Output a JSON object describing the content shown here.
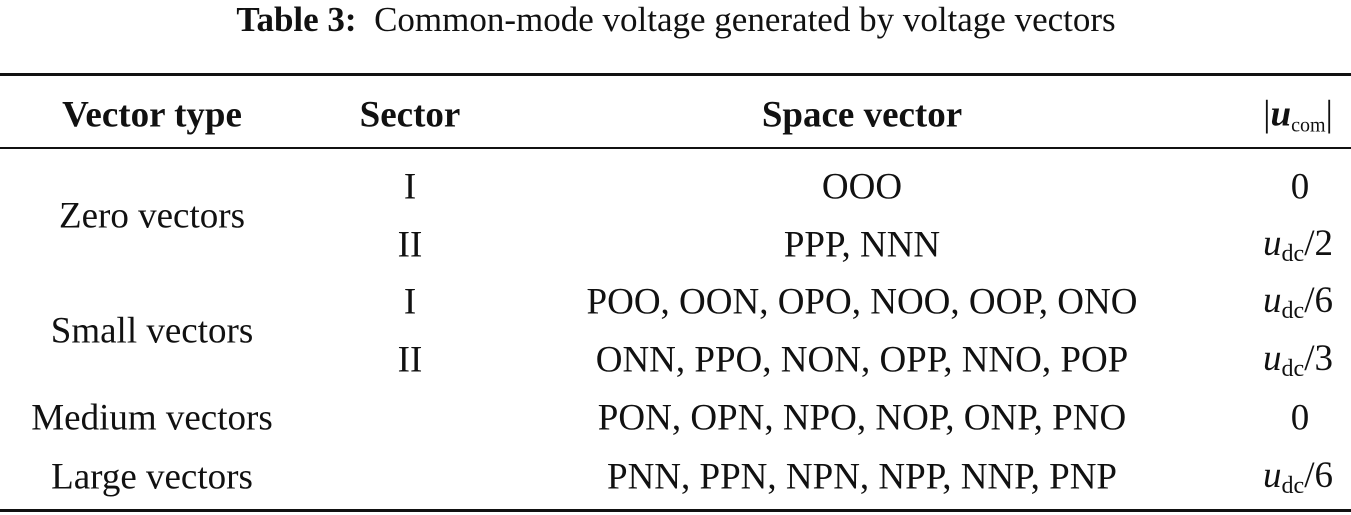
{
  "title": {
    "label": "Table 3:",
    "text": "Common-mode voltage generated by voltage vectors"
  },
  "table": {
    "header": {
      "type": "Vector type",
      "sector": "Sector",
      "space": "Space vector",
      "ucom": {
        "open": "|",
        "symbol": "u",
        "sub": "com",
        "close": "|"
      }
    },
    "groups": [
      {
        "type": "Zero vectors",
        "rows": [
          {
            "sector": "I",
            "vectors": "OOO",
            "ucom": 0
          },
          {
            "sector": "II",
            "vectors": "PPP, NNN",
            "ucom": {
              "symbol": "u",
              "sub": "dc",
              "rest": "/2"
            }
          }
        ]
      },
      {
        "type": "Small vectors",
        "rows": [
          {
            "sector": "I",
            "vectors": "POO, OON, OPO, NOO, OOP, ONO",
            "ucom": {
              "symbol": "u",
              "sub": "dc",
              "rest": "/6"
            }
          },
          {
            "sector": "II",
            "vectors": "ONN, PPO, NON, OPP, NNO, POP",
            "ucom": {
              "symbol": "u",
              "sub": "dc",
              "rest": "/3"
            }
          }
        ]
      },
      {
        "type": "Medium vectors",
        "rows": [
          {
            "vectors": "PON, OPN, NPO, NOP, ONP, PNO",
            "ucom": 0
          }
        ]
      },
      {
        "type": "Large vectors",
        "rows": [
          {
            "vectors": "PNN, PPN, NPN, NPP, NNP, PNP",
            "ucom": {
              "symbol": "u",
              "sub": "dc",
              "rest": "/6"
            }
          }
        ]
      }
    ]
  }
}
